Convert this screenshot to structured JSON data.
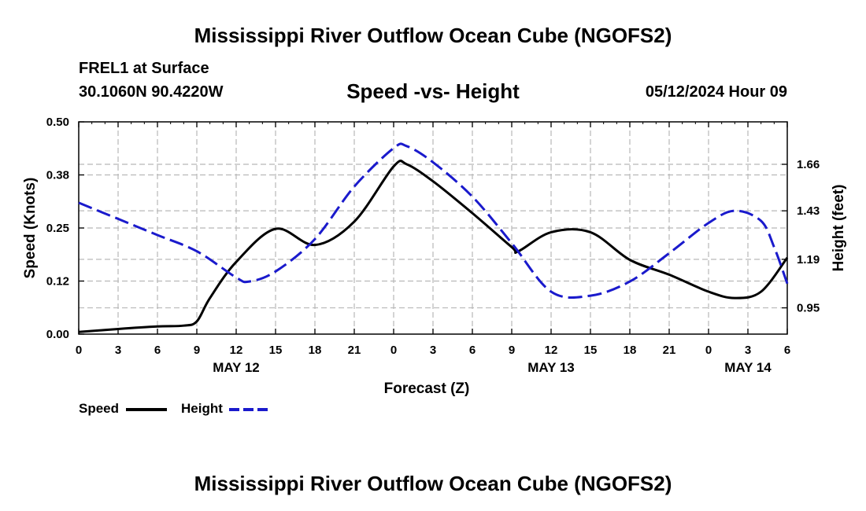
{
  "page": {
    "title_top": "Mississippi River Outflow Ocean Cube (NGOFS2)",
    "title_bottom": "Mississippi River Outflow Ocean Cube (NGOFS2)",
    "station": "FREL1 at Surface",
    "coords": "30.1060N  90.4220W",
    "datetime": "05/12/2024 Hour 09"
  },
  "chart_data": {
    "type": "line",
    "title": "Speed -vs- Height",
    "xlabel": "Forecast (Z)",
    "ylabel": "Speed (Knots)",
    "y2label": "Height (feet)",
    "grid": true,
    "x_range": [
      0,
      54
    ],
    "ylim": [
      0,
      0.5
    ],
    "y2lim": [
      0.82,
      1.87
    ],
    "x_ticks": [
      0,
      3,
      6,
      9,
      12,
      15,
      18,
      21,
      24,
      27,
      30,
      33,
      36,
      39,
      42,
      45,
      48,
      51,
      54
    ],
    "x_tick_labels": [
      "0",
      "3",
      "6",
      "9",
      "12",
      "15",
      "18",
      "21",
      "0",
      "3",
      "6",
      "9",
      "12",
      "15",
      "18",
      "21",
      "0",
      "3",
      "6"
    ],
    "date_labels": [
      {
        "x": 12,
        "label": "MAY 12"
      },
      {
        "x": 36,
        "label": "MAY 13"
      },
      {
        "x": 51,
        "label": "MAY 14"
      }
    ],
    "y_ticks": [
      0.0,
      0.125,
      0.25,
      0.375,
      0.5
    ],
    "y_tick_labels": [
      "0.00",
      "0.12",
      "0.25",
      "0.38",
      "0.50"
    ],
    "y2_ticks": [
      0.95,
      1.19,
      1.43,
      1.66
    ],
    "y2_tick_labels": [
      "0.95",
      "1.19",
      "1.43",
      "1.66"
    ],
    "series": [
      {
        "name": "Speed",
        "axis": "left",
        "color": "#000000",
        "dash": "solid",
        "x": [
          0,
          3,
          6,
          8,
          9,
          10,
          12,
          15,
          18,
          21,
          24,
          25,
          27,
          30,
          33,
          33.5,
          36,
          39,
          42,
          45,
          48,
          50,
          52,
          54
        ],
        "values": [
          0.005,
          0.012,
          0.018,
          0.02,
          0.03,
          0.085,
          0.17,
          0.248,
          0.21,
          0.265,
          0.395,
          0.4,
          0.36,
          0.285,
          0.205,
          0.195,
          0.24,
          0.24,
          0.175,
          0.14,
          0.1,
          0.085,
          0.1,
          0.18
        ]
      },
      {
        "name": "Height",
        "axis": "right",
        "color": "#1a1acc",
        "dash": "dashed",
        "x": [
          0,
          3,
          6,
          9,
          12,
          13,
          15,
          18,
          21,
          24,
          25,
          27,
          30,
          33,
          36,
          39,
          42,
          45,
          48,
          50,
          52,
          53,
          54
        ],
        "values": [
          1.47,
          1.39,
          1.31,
          1.23,
          1.1,
          1.08,
          1.13,
          1.29,
          1.55,
          1.74,
          1.75,
          1.67,
          1.5,
          1.27,
          1.03,
          1.01,
          1.08,
          1.22,
          1.37,
          1.43,
          1.38,
          1.25,
          1.07
        ]
      }
    ]
  }
}
